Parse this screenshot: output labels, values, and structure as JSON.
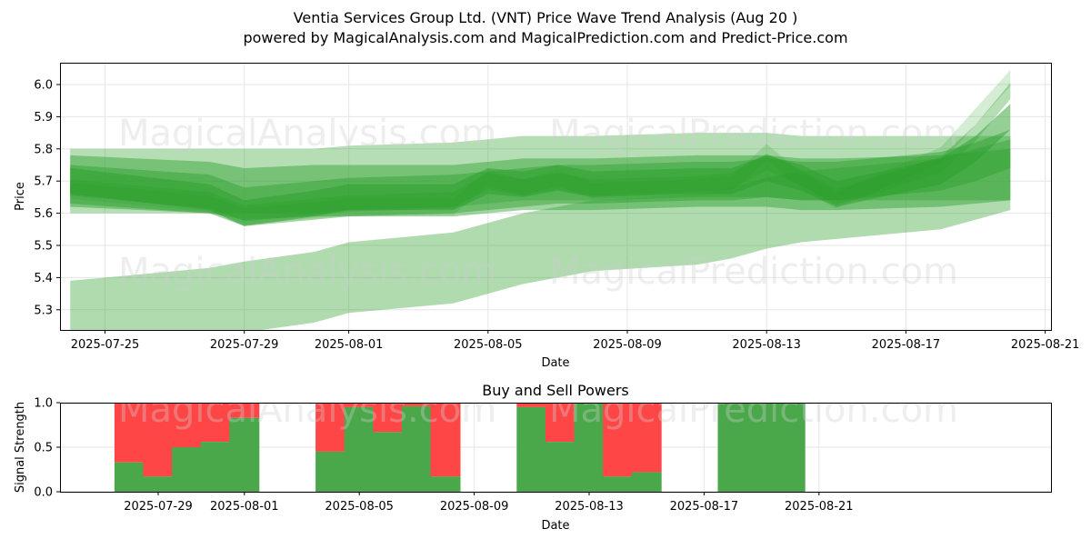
{
  "title_line1": "Ventia Services Group Ltd. (VNT) Price Wave Trend Analysis (Aug 20 )",
  "title_line2": "powered by MagicalAnalysis.com and MagicalPrediction.com and Predict-Price.com",
  "watermarks": [
    "MagicalAnalysis.com",
    "MagicalPrediction.com"
  ],
  "colors": {
    "wave": "#2ca02c",
    "buy": "#4aa84a",
    "sell": "#ff4646",
    "grid": "#e6e6e6"
  },
  "chart_data": [
    {
      "type": "area",
      "title": "",
      "xlabel": "Date",
      "ylabel": "Price",
      "ylim": [
        5.235,
        6.065
      ],
      "x_ticks": [
        "2025-07-25",
        "2025-07-29",
        "2025-08-01",
        "2025-08-05",
        "2025-08-09",
        "2025-08-13",
        "2025-08-17",
        "2025-08-21"
      ],
      "y_ticks": [
        5.3,
        5.4,
        5.5,
        5.6,
        5.7,
        5.8,
        5.9,
        6.0
      ],
      "grid": true,
      "x_dates": [
        "2025-07-24",
        "2025-07-28",
        "2025-07-29",
        "2025-07-31",
        "2025-08-01",
        "2025-08-04",
        "2025-08-05",
        "2025-08-06",
        "2025-08-07",
        "2025-08-08",
        "2025-08-11",
        "2025-08-12",
        "2025-08-13",
        "2025-08-14",
        "2025-08-15",
        "2025-08-18",
        "2025-08-19",
        "2025-08-20"
      ],
      "bands": [
        {
          "center": [
            5.7,
            5.7,
            5.7,
            5.7,
            5.71,
            5.72,
            5.73,
            5.74,
            5.74,
            5.74,
            5.75,
            5.75,
            5.75,
            5.74,
            5.74,
            5.74,
            5.74,
            5.74
          ],
          "width": 0.2,
          "opacity": 0.35
        },
        {
          "center": [
            5.7,
            5.68,
            5.66,
            5.67,
            5.67,
            5.67,
            5.68,
            5.69,
            5.69,
            5.69,
            5.7,
            5.7,
            5.7,
            5.69,
            5.69,
            5.7,
            5.71,
            5.72
          ],
          "width": 0.16,
          "opacity": 0.45
        },
        {
          "center": [
            5.69,
            5.66,
            5.62,
            5.64,
            5.65,
            5.66,
            5.67,
            5.68,
            5.69,
            5.69,
            5.7,
            5.7,
            5.71,
            5.7,
            5.7,
            5.73,
            5.76,
            5.8
          ],
          "width": 0.12,
          "opacity": 0.45
        },
        {
          "center": [
            5.7,
            5.65,
            5.6,
            5.63,
            5.65,
            5.65,
            5.7,
            5.69,
            5.71,
            5.69,
            5.7,
            5.7,
            5.74,
            5.71,
            5.66,
            5.73,
            5.8,
            5.9
          ],
          "width": 0.08,
          "opacity": 0.5
        },
        {
          "center": [
            5.68,
            5.64,
            5.6,
            5.62,
            5.63,
            5.64,
            5.7,
            5.68,
            5.7,
            5.68,
            5.69,
            5.7,
            5.76,
            5.71,
            5.65,
            5.75,
            5.85,
            5.98
          ],
          "width": 0.05,
          "opacity": 0.35
        },
        {
          "center": [
            5.67,
            5.63,
            5.59,
            5.61,
            5.62,
            5.62,
            5.71,
            5.68,
            5.71,
            5.67,
            5.68,
            5.69,
            5.79,
            5.7,
            5.64,
            5.78,
            5.9,
            6.02
          ],
          "width": 0.05,
          "opacity": 0.2
        },
        {
          "center": [
            5.28,
            5.32,
            5.34,
            5.37,
            5.4,
            5.43,
            5.46,
            5.49,
            5.51,
            5.53,
            5.55,
            5.57,
            5.6,
            5.62,
            5.63,
            5.66,
            5.69,
            5.72
          ],
          "width": 0.22,
          "opacity": 0.38
        }
      ]
    },
    {
      "type": "bar",
      "title": "Buy and Sell Powers",
      "xlabel": "Date",
      "ylabel": "Signal Strength",
      "ylim": [
        0,
        1
      ],
      "y_ticks": [
        "0.0",
        "0.5",
        "1.0"
      ],
      "x_ticks": [
        "2025-07-29",
        "2025-08-01",
        "2025-08-05",
        "2025-08-09",
        "2025-08-13",
        "2025-08-17",
        "2025-08-21"
      ],
      "grid": true,
      "series": [
        {
          "name": "",
          "values": [
            0.33,
            0.17,
            0.5,
            0.56,
            0.83,
            0.45,
            0.95,
            0.67,
            0.96,
            0.17,
            0.95,
            0.56,
            1.0,
            0.17,
            0.22,
            1.0,
            1.0,
            1.0
          ]
        }
      ],
      "categories": [
        "2025-07-28",
        "2025-07-29",
        "2025-07-30",
        "2025-07-31",
        "2025-08-01",
        "2025-08-04",
        "2025-08-05",
        "2025-08-06",
        "2025-08-07",
        "2025-08-08",
        "2025-08-11",
        "2025-08-12",
        "2025-08-13",
        "2025-08-14",
        "2025-08-15",
        "2025-08-18",
        "2025-08-19",
        "2025-08-20"
      ]
    }
  ]
}
